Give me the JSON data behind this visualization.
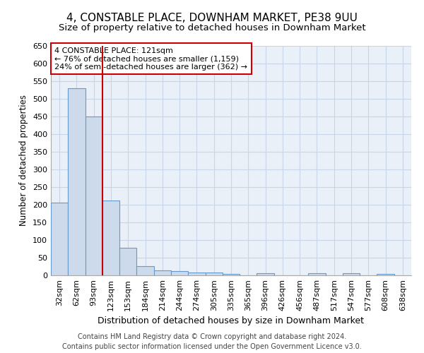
{
  "title1": "4, CONSTABLE PLACE, DOWNHAM MARKET, PE38 9UU",
  "title2": "Size of property relative to detached houses in Downham Market",
  "xlabel": "Distribution of detached houses by size in Downham Market",
  "ylabel": "Number of detached properties",
  "footnote1": "Contains HM Land Registry data © Crown copyright and database right 2024.",
  "footnote2": "Contains public sector information licensed under the Open Government Licence v3.0.",
  "categories": [
    "32sqm",
    "62sqm",
    "93sqm",
    "123sqm",
    "153sqm",
    "184sqm",
    "214sqm",
    "244sqm",
    "274sqm",
    "305sqm",
    "335sqm",
    "365sqm",
    "396sqm",
    "426sqm",
    "456sqm",
    "487sqm",
    "517sqm",
    "547sqm",
    "577sqm",
    "608sqm",
    "638sqm"
  ],
  "values": [
    207,
    530,
    450,
    212,
    78,
    27,
    15,
    12,
    8,
    8,
    5,
    0,
    7,
    0,
    0,
    6,
    0,
    7,
    0,
    5,
    0
  ],
  "bar_color": "#ccdaeb",
  "bar_edge_color": "#6699cc",
  "vline_x": 2.5,
  "vline_color": "#cc0000",
  "annotation_title": "4 CONSTABLE PLACE: 121sqm",
  "annotation_line1": "← 76% of detached houses are smaller (1,159)",
  "annotation_line2": "24% of semi-detached houses are larger (362) →",
  "annotation_box_color": "white",
  "annotation_box_edge_color": "#cc0000",
  "ylim": [
    0,
    650
  ],
  "yticks": [
    0,
    50,
    100,
    150,
    200,
    250,
    300,
    350,
    400,
    450,
    500,
    550,
    600,
    650
  ],
  "grid_color": "#c8d4e8",
  "plot_bg_color": "#eaf0f8",
  "fig_background": "white",
  "title1_fontsize": 11,
  "title2_fontsize": 9.5,
  "xlabel_fontsize": 9,
  "ylabel_fontsize": 8.5,
  "tick_fontsize": 8,
  "footnote_fontsize": 7
}
